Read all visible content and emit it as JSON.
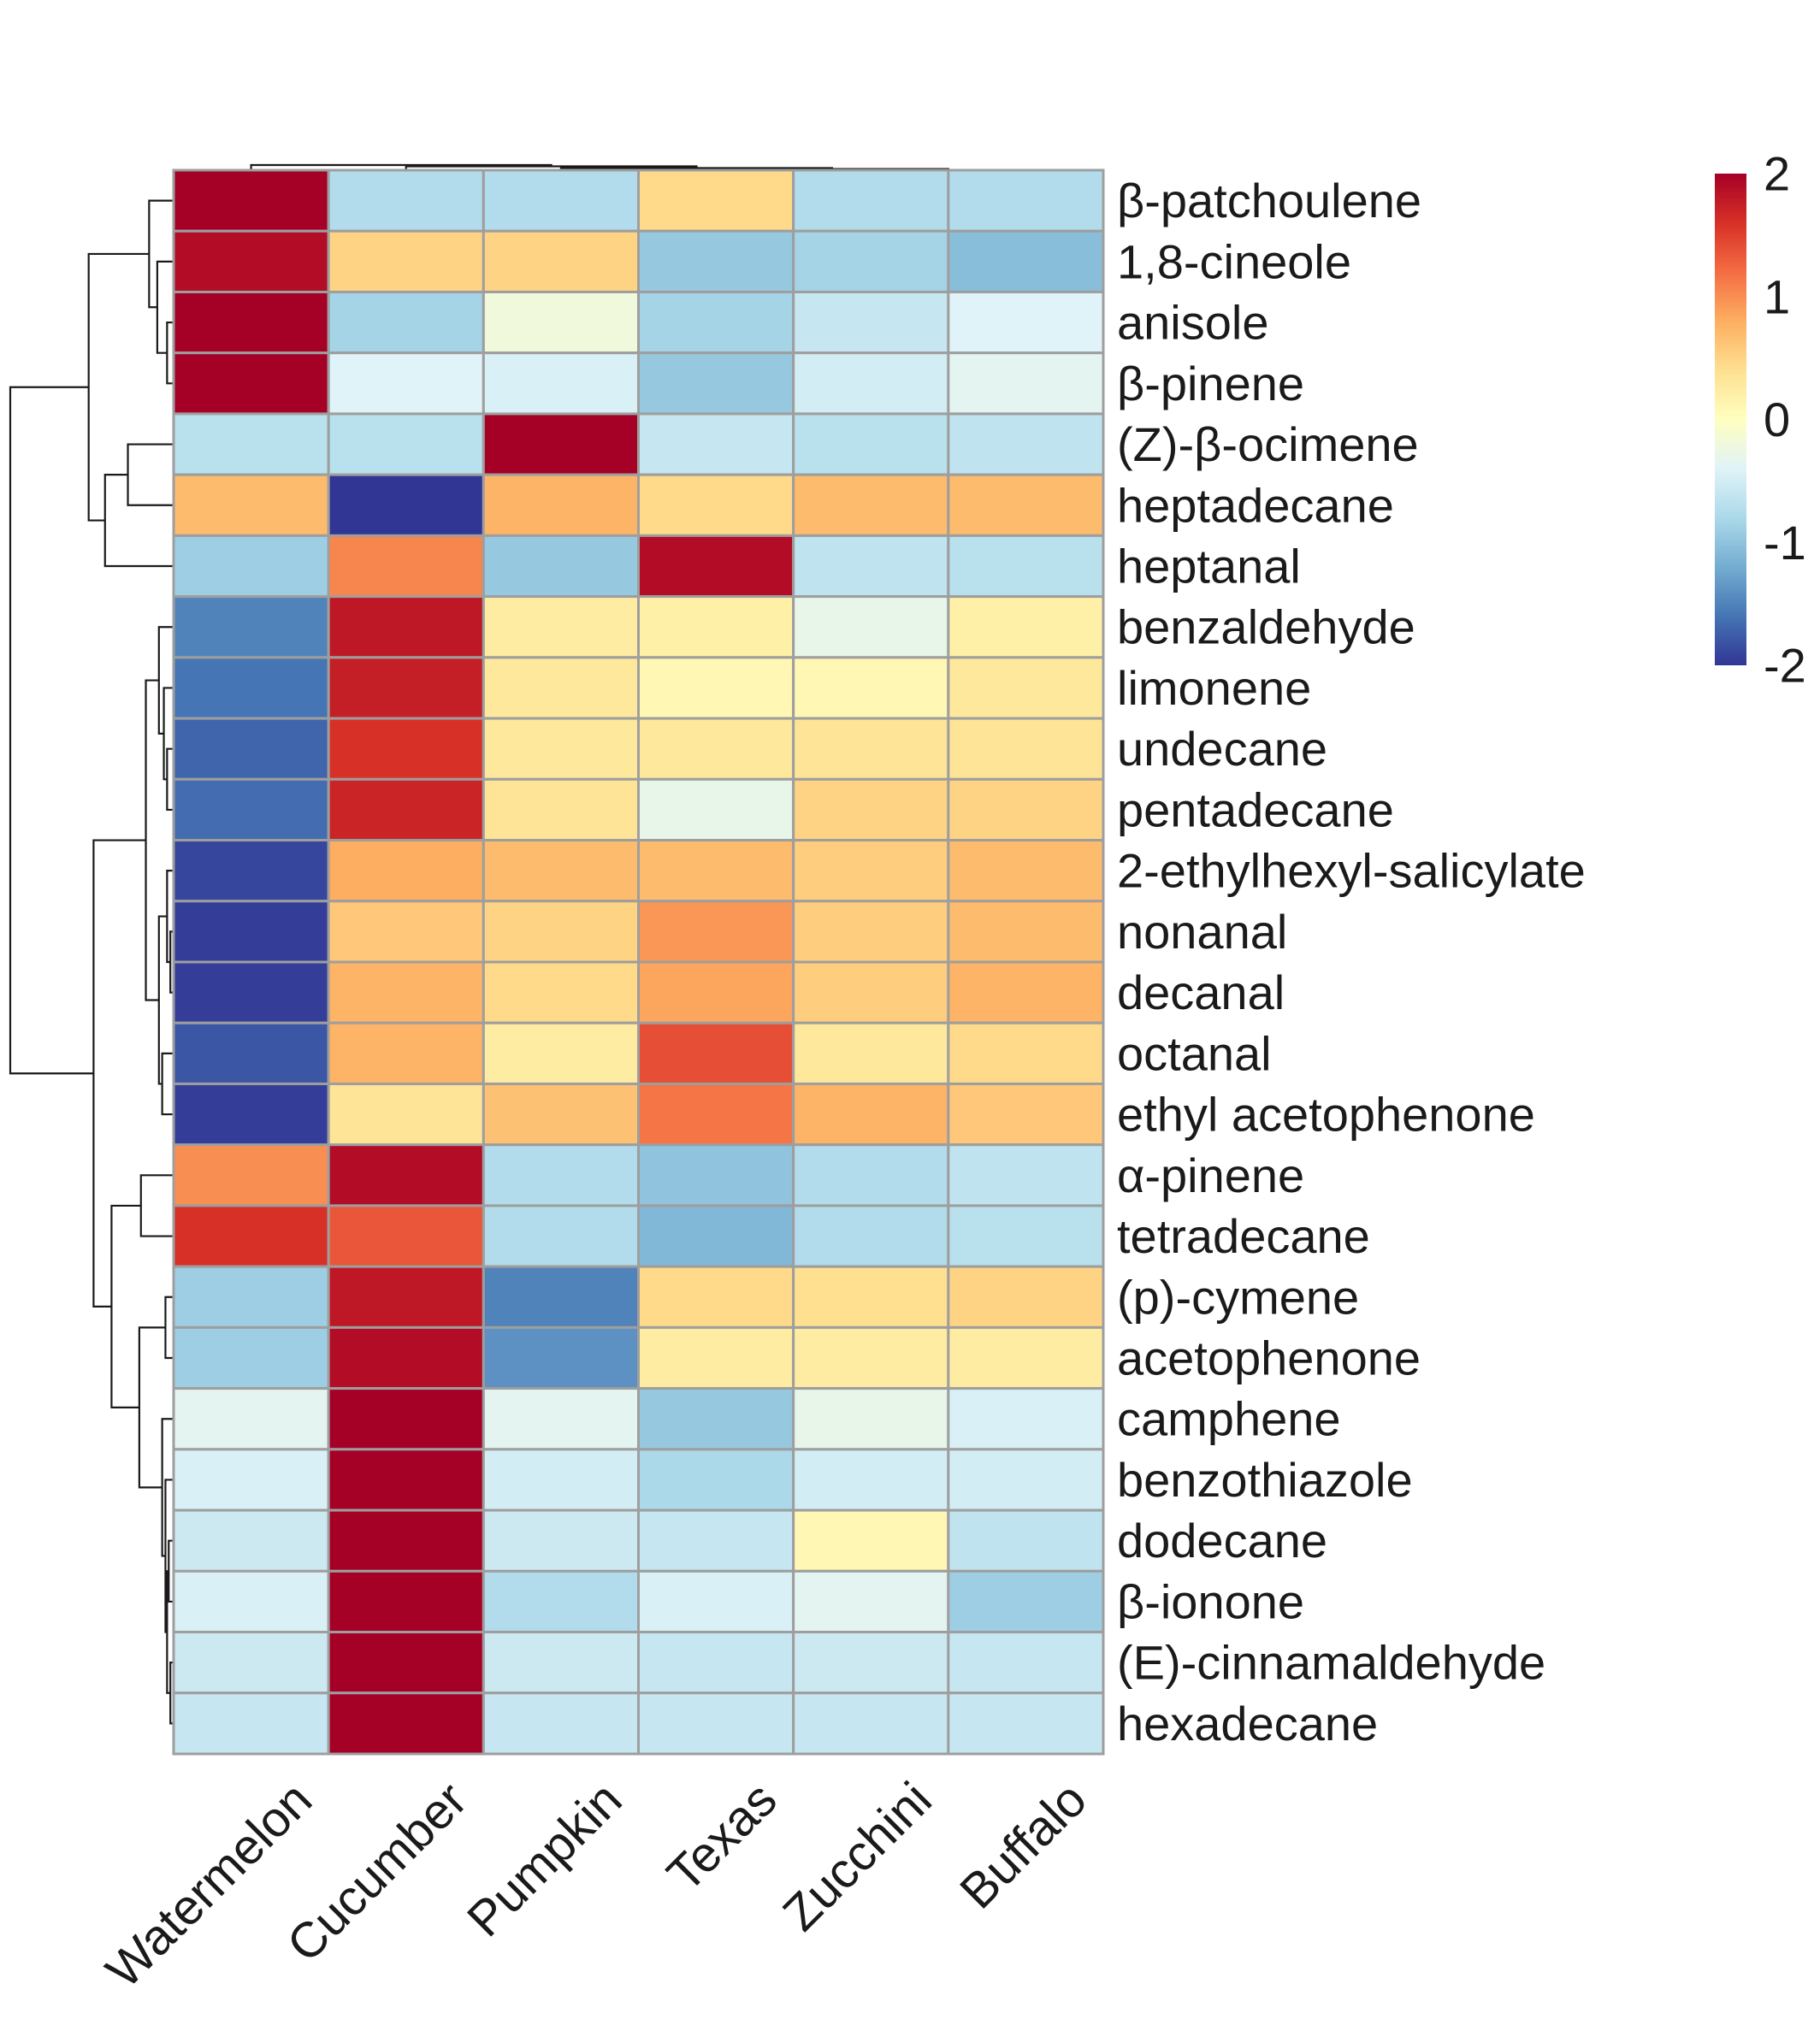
{
  "chart_data": {
    "type": "heatmap",
    "columns": [
      "Watermelon",
      "Cucumber",
      "Pumpkin",
      "Texas",
      "Zucchini",
      "Buffalo"
    ],
    "rows": [
      {
        "label": "β-patchoulene",
        "values": [
          2.0,
          -0.75,
          -0.75,
          0.45,
          -0.75,
          -0.75
        ]
      },
      {
        "label": "1,8-cineole",
        "values": [
          1.9,
          0.5,
          0.5,
          -0.95,
          -0.85,
          -1.05
        ]
      },
      {
        "label": "anisole",
        "values": [
          2.0,
          -0.85,
          -0.2,
          -0.85,
          -0.6,
          -0.4
        ]
      },
      {
        "label": "β-pinene",
        "values": [
          2.0,
          -0.4,
          -0.45,
          -0.95,
          -0.5,
          -0.35
        ]
      },
      {
        "label": "(Z)-β-ocimene",
        "values": [
          -0.7,
          -0.7,
          2.0,
          -0.6,
          -0.7,
          -0.65
        ]
      },
      {
        "label": "heptadecane",
        "values": [
          0.7,
          -2.0,
          0.75,
          0.45,
          0.7,
          0.7
        ]
      },
      {
        "label": "heptanal",
        "values": [
          -0.9,
          1.05,
          -0.95,
          1.9,
          -0.65,
          -0.7
        ]
      },
      {
        "label": "benzaldehyde",
        "values": [
          -1.5,
          1.8,
          0.25,
          0.2,
          -0.3,
          0.2
        ]
      },
      {
        "label": "limonene",
        "values": [
          -1.6,
          1.75,
          0.3,
          0.1,
          0.1,
          0.3
        ]
      },
      {
        "label": "undecane",
        "values": [
          -1.7,
          1.6,
          0.3,
          0.3,
          0.35,
          0.35
        ]
      },
      {
        "label": "pentadecane",
        "values": [
          -1.65,
          1.7,
          0.35,
          -0.3,
          0.5,
          0.5
        ]
      },
      {
        "label": "2-ethylhexyl-salicylate",
        "values": [
          -1.9,
          0.8,
          0.7,
          0.7,
          0.55,
          0.7
        ]
      },
      {
        "label": "nonanal",
        "values": [
          -1.95,
          0.6,
          0.5,
          0.95,
          0.55,
          0.7
        ]
      },
      {
        "label": "decanal",
        "values": [
          -1.95,
          0.75,
          0.45,
          0.85,
          0.55,
          0.75
        ]
      },
      {
        "label": "octanal",
        "values": [
          -1.8,
          0.75,
          0.25,
          1.4,
          0.3,
          0.45
        ]
      },
      {
        "label": "ethyl acetophenone",
        "values": [
          -1.95,
          0.35,
          0.65,
          1.15,
          0.75,
          0.6
        ]
      },
      {
        "label": "α-pinene",
        "values": [
          1.0,
          1.9,
          -0.75,
          -1.0,
          -0.75,
          -0.65
        ]
      },
      {
        "label": "tetradecane",
        "values": [
          1.6,
          1.35,
          -0.75,
          -1.1,
          -0.75,
          -0.7
        ]
      },
      {
        "label": "(p)-cymene",
        "values": [
          -0.9,
          1.8,
          -1.5,
          0.45,
          0.4,
          0.5
        ]
      },
      {
        "label": "acetophenone",
        "values": [
          -0.9,
          1.9,
          -1.4,
          0.25,
          0.25,
          0.25
        ]
      },
      {
        "label": "camphene",
        "values": [
          -0.35,
          2.0,
          -0.35,
          -0.95,
          -0.3,
          -0.45
        ]
      },
      {
        "label": "benzothiazole",
        "values": [
          -0.45,
          2.0,
          -0.5,
          -0.8,
          -0.5,
          -0.5
        ]
      },
      {
        "label": "dodecane",
        "values": [
          -0.55,
          2.0,
          -0.55,
          -0.6,
          0.1,
          -0.65
        ]
      },
      {
        "label": "β-ionone",
        "values": [
          -0.45,
          2.0,
          -0.75,
          -0.45,
          -0.35,
          -0.9
        ]
      },
      {
        "label": "(E)-cinnamaldehyde",
        "values": [
          -0.55,
          2.0,
          -0.55,
          -0.6,
          -0.55,
          -0.6
        ]
      },
      {
        "label": "hexadecane",
        "values": [
          -0.6,
          2.0,
          -0.6,
          -0.6,
          -0.6,
          -0.6
        ]
      }
    ],
    "color_scale": {
      "min": -2,
      "max": 2,
      "ticks": [
        2,
        1,
        0,
        -1,
        -2
      ],
      "tick_labels": [
        "2",
        "1",
        "0",
        "-1",
        "-2"
      ],
      "stops": [
        "#313695",
        "#4575b4",
        "#74add1",
        "#abd9e9",
        "#e0f3f8",
        "#ffffbf",
        "#fee090",
        "#fdae61",
        "#f46d43",
        "#d73027",
        "#a50026"
      ]
    },
    "column_dendrogram": [
      {
        "a": 4,
        "b": 5,
        "h": 0.06
      },
      {
        "a": 3,
        "b": 6,
        "h": 0.23
      },
      {
        "a": 2,
        "b": 7,
        "h": 0.42
      },
      {
        "a": 1,
        "b": 8,
        "h": 0.75
      },
      {
        "a": 0,
        "b": 9,
        "h": 1.0
      }
    ],
    "row_dendrogram": [
      {
        "a": 2,
        "b": 3,
        "h": 0.04
      },
      {
        "a": 1,
        "b": 26,
        "h": 0.1
      },
      {
        "a": 0,
        "b": 27,
        "h": 0.15
      },
      {
        "a": 4,
        "b": 5,
        "h": 0.28
      },
      {
        "a": 29,
        "b": 6,
        "h": 0.42
      },
      {
        "a": 28,
        "b": 30,
        "h": 0.52
      },
      {
        "a": 9,
        "b": 10,
        "h": 0.04
      },
      {
        "a": 8,
        "b": 32,
        "h": 0.06
      },
      {
        "a": 7,
        "b": 33,
        "h": 0.09
      },
      {
        "a": 12,
        "b": 13,
        "h": 0.02
      },
      {
        "a": 11,
        "b": 35,
        "h": 0.04
      },
      {
        "a": 14,
        "b": 15,
        "h": 0.07
      },
      {
        "a": 36,
        "b": 37,
        "h": 0.09
      },
      {
        "a": 34,
        "b": 38,
        "h": 0.17
      },
      {
        "a": 16,
        "b": 17,
        "h": 0.2
      },
      {
        "a": 18,
        "b": 19,
        "h": 0.05
      },
      {
        "a": 22,
        "b": 23,
        "h": 0.03
      },
      {
        "a": 24,
        "b": 25,
        "h": 0.02
      },
      {
        "a": 42,
        "b": 43,
        "h": 0.04
      },
      {
        "a": 21,
        "b": 44,
        "h": 0.05
      },
      {
        "a": 20,
        "b": 45,
        "h": 0.07
      },
      {
        "a": 41,
        "b": 46,
        "h": 0.21
      },
      {
        "a": 40,
        "b": 47,
        "h": 0.38
      },
      {
        "a": 39,
        "b": 48,
        "h": 0.49
      },
      {
        "a": 31,
        "b": 49,
        "h": 1.0
      }
    ]
  }
}
